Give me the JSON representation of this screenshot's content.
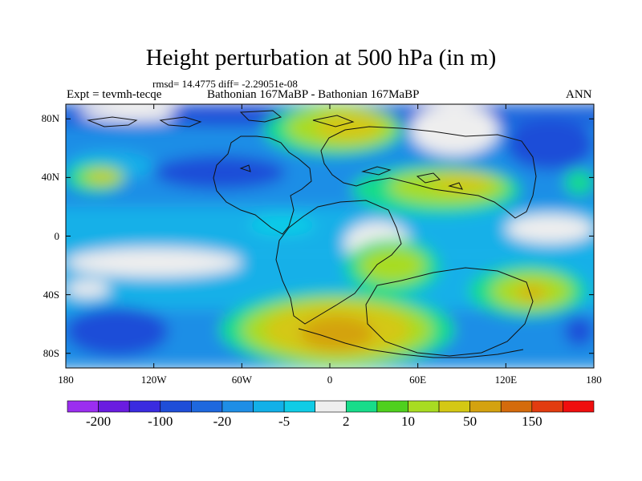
{
  "title": "Height perturbation at 500 hPa (in m)",
  "stats": "rmsd= 14.4775 diff= -2.29051e-08",
  "expt_label": "Expt = tevmh-tecqe",
  "subtitle": "Bathonian 167MaBP - Bathonian 167MaBP",
  "season": "ANN",
  "map": {
    "projection": "cylindrical-equidistant",
    "lon_range": [
      -180,
      180
    ],
    "lat_range": [
      -90,
      90
    ],
    "field": "500 hPa height perturbation (m)",
    "background": "#eeeeee"
  },
  "axes": {
    "y_ticks": [
      {
        "label": "80N",
        "lat": 80
      },
      {
        "label": "40N",
        "lat": 40
      },
      {
        "label": "0",
        "lat": 0
      },
      {
        "label": "40S",
        "lat": -40
      },
      {
        "label": "80S",
        "lat": -80
      }
    ],
    "x_ticks": [
      {
        "label": "180",
        "lon": -180
      },
      {
        "label": "120W",
        "lon": -120
      },
      {
        "label": "60W",
        "lon": -60
      },
      {
        "label": "0",
        "lon": 0
      },
      {
        "label": "60E",
        "lon": 60
      },
      {
        "label": "120E",
        "lon": 120
      },
      {
        "label": "180",
        "lon": 180
      }
    ]
  },
  "colorbar": {
    "colors": [
      "#9b2ef0",
      "#6a1ce0",
      "#3a2be0",
      "#1f4ed8",
      "#1e68de",
      "#1f8ee6",
      "#12b0e8",
      "#10cce6",
      "#eeeeee",
      "#18dc8a",
      "#4fd01e",
      "#a8dc22",
      "#d4c814",
      "#d4a210",
      "#d46b0c",
      "#e23c10",
      "#f00e0e"
    ],
    "labels": [
      {
        "text": "-200",
        "boundary": 1
      },
      {
        "text": "-100",
        "boundary": 3
      },
      {
        "text": "-20",
        "boundary": 5
      },
      {
        "text": "-5",
        "boundary": 7
      },
      {
        "text": "2",
        "boundary": 9
      },
      {
        "text": "10",
        "boundary": 11
      },
      {
        "text": "50",
        "boundary": 13
      },
      {
        "text": "150",
        "boundary": 15
      }
    ]
  },
  "regions": [
    {
      "name": "band-north-pole",
      "color": "#1e68de",
      "lon": [
        -180,
        180
      ],
      "lat": [
        74,
        90
      ]
    },
    {
      "name": "band-north-mid",
      "color": "#1f8ee6",
      "lon": [
        -180,
        180
      ],
      "lat": [
        20,
        74
      ]
    },
    {
      "name": "band-tropics",
      "color": "#12b0e8",
      "lon": [
        -180,
        180
      ],
      "lat": [
        -12,
        20
      ]
    },
    {
      "name": "band-south-mid",
      "color": "#12b0e8",
      "lon": [
        -180,
        180
      ],
      "lat": [
        -50,
        -12
      ]
    },
    {
      "name": "band-south-pole",
      "color": "#1f8ee6",
      "lon": [
        -180,
        180
      ],
      "lat": [
        -90,
        -50
      ]
    },
    {
      "name": "white-arctic-west",
      "color": "#eeeeee",
      "lon": [
        -170,
        -95
      ],
      "lat": [
        78,
        90
      ]
    },
    {
      "name": "white-arctic-east",
      "color": "#eeeeee",
      "lon": [
        -15,
        5
      ],
      "lat": [
        74,
        90
      ]
    },
    {
      "name": "white-north-east",
      "color": "#eeeeee",
      "lon": [
        55,
        115
      ],
      "lat": [
        55,
        90
      ]
    },
    {
      "name": "white-pacific-sw",
      "color": "#eeeeee",
      "lon": [
        -180,
        -60
      ],
      "lat": [
        -28,
        -8
      ]
    },
    {
      "name": "white-atlantic-south",
      "color": "#eeeeee",
      "lon": [
        10,
        55
      ],
      "lat": [
        -20,
        10
      ]
    },
    {
      "name": "white-south-west",
      "color": "#eeeeee",
      "lon": [
        -180,
        -150
      ],
      "lat": [
        -42,
        -30
      ]
    },
    {
      "name": "white-far-east-tropic",
      "color": "#eeeeee",
      "lon": [
        120,
        180
      ],
      "lat": [
        -5,
        15
      ]
    },
    {
      "name": "dark-arctic",
      "color": "#1f4ed8",
      "lon": [
        -110,
        -30
      ],
      "lat": [
        76,
        90
      ]
    },
    {
      "name": "dark-north-america",
      "color": "#1f4ed8",
      "lon": [
        -120,
        -30
      ],
      "lat": [
        32,
        55
      ]
    },
    {
      "name": "dark-pacific-ne",
      "color": "#1f4ed8",
      "lon": [
        120,
        180
      ],
      "lat": [
        45,
        80
      ]
    },
    {
      "name": "dark-south-west",
      "color": "#1f4ed8",
      "lon": [
        -180,
        -110
      ],
      "lat": [
        -82,
        -48
      ]
    },
    {
      "name": "dark-south-east",
      "color": "#1f4ed8",
      "lon": [
        160,
        180
      ],
      "lat": [
        -75,
        -55
      ]
    },
    {
      "name": "cyan-north-west",
      "color": "#12b0e8",
      "lon": [
        -180,
        -120
      ],
      "lat": [
        38,
        58
      ]
    },
    {
      "name": "cyan-atlantic",
      "color": "#10cce6",
      "lon": [
        -55,
        -10
      ],
      "lat": [
        0,
        15
      ]
    },
    {
      "name": "green-siberia",
      "color": "#18dc8a",
      "lon": [
        -45,
        50
      ],
      "lat": [
        55,
        90
      ]
    },
    {
      "name": "lime-siberia",
      "color": "#a8dc22",
      "lon": [
        -30,
        45
      ],
      "lat": [
        60,
        88
      ]
    },
    {
      "name": "gold-siberia",
      "color": "#d4c814",
      "lon": [
        -10,
        35
      ],
      "lat": [
        65,
        84
      ]
    },
    {
      "name": "green-west-mid",
      "color": "#18dc8a",
      "lon": [
        -180,
        -140
      ],
      "lat": [
        30,
        50
      ]
    },
    {
      "name": "lime-west-mid",
      "color": "#a8dc22",
      "lon": [
        -170,
        -140
      ],
      "lat": [
        35,
        46
      ]
    },
    {
      "name": "gold-west-mid",
      "color": "#d4c814",
      "lon": [
        -165,
        -145
      ],
      "lat": [
        37,
        44
      ]
    },
    {
      "name": "green-asia",
      "color": "#18dc8a",
      "lon": [
        15,
        130
      ],
      "lat": [
        15,
        48
      ]
    },
    {
      "name": "lime-asia",
      "color": "#a8dc22",
      "lon": [
        40,
        120
      ],
      "lat": [
        22,
        45
      ]
    },
    {
      "name": "gold-asia",
      "color": "#d4c814",
      "lon": [
        70,
        110
      ],
      "lat": [
        30,
        42
      ]
    },
    {
      "name": "green-east-edge",
      "color": "#18dc8a",
      "lon": [
        160,
        180
      ],
      "lat": [
        28,
        45
      ]
    },
    {
      "name": "green-south-atlantic",
      "color": "#18dc8a",
      "lon": [
        10,
        75
      ],
      "lat": [
        -40,
        -2
      ]
    },
    {
      "name": "lime-south-atlantic",
      "color": "#a8dc22",
      "lon": [
        20,
        65
      ],
      "lat": [
        -32,
        -8
      ]
    },
    {
      "name": "green-indian-south",
      "color": "#18dc8a",
      "lon": [
        95,
        175
      ],
      "lat": [
        -55,
        -20
      ]
    },
    {
      "name": "lime-indian-south",
      "color": "#a8dc22",
      "lon": [
        110,
        165
      ],
      "lat": [
        -50,
        -25
      ]
    },
    {
      "name": "gold-indian-south",
      "color": "#d4c814",
      "lon": [
        125,
        150
      ],
      "lat": [
        -45,
        -32
      ]
    },
    {
      "name": "orange-indian-south",
      "color": "#d4a210",
      "lon": [
        130,
        145
      ],
      "lat": [
        -42,
        -36
      ]
    },
    {
      "name": "green-antarctic",
      "color": "#18dc8a",
      "lon": [
        -75,
        85
      ],
      "lat": [
        -90,
        -38
      ]
    },
    {
      "name": "lime-antarctic",
      "color": "#a8dc22",
      "lon": [
        -60,
        70
      ],
      "lat": [
        -86,
        -42
      ]
    },
    {
      "name": "gold-antarctic",
      "color": "#d4c814",
      "lon": [
        -45,
        55
      ],
      "lat": [
        -82,
        -46
      ]
    },
    {
      "name": "orange-antarctic",
      "color": "#d4a210",
      "lon": [
        -20,
        30
      ],
      "lat": [
        -78,
        -55
      ]
    }
  ]
}
